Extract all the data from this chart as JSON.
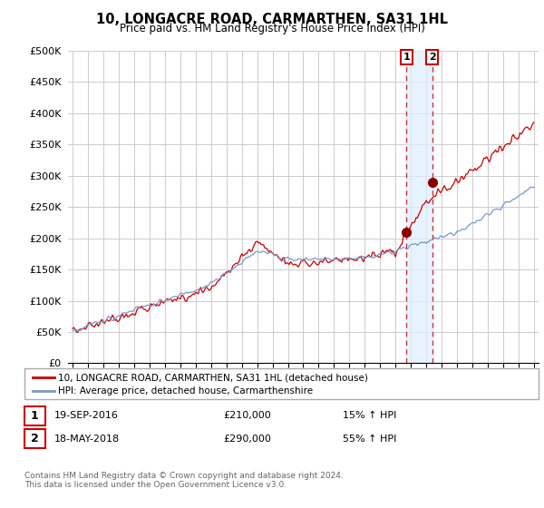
{
  "title": "10, LONGACRE ROAD, CARMARTHEN, SA31 1HL",
  "subtitle": "Price paid vs. HM Land Registry's House Price Index (HPI)",
  "ylabel_ticks": [
    "£0",
    "£50K",
    "£100K",
    "£150K",
    "£200K",
    "£250K",
    "£300K",
    "£350K",
    "£400K",
    "£450K",
    "£500K"
  ],
  "ytick_vals": [
    0,
    50000,
    100000,
    150000,
    200000,
    250000,
    300000,
    350000,
    400000,
    450000,
    500000
  ],
  "ylim": [
    0,
    500000
  ],
  "legend_line1": "10, LONGACRE ROAD, CARMARTHEN, SA31 1HL (detached house)",
  "legend_line2": "HPI: Average price, detached house, Carmarthenshire",
  "transaction1_date": "19-SEP-2016",
  "transaction1_price": "£210,000",
  "transaction1_hpi": "15% ↑ HPI",
  "transaction2_date": "18-MAY-2018",
  "transaction2_price": "£290,000",
  "transaction2_hpi": "55% ↑ HPI",
  "footer": "Contains HM Land Registry data © Crown copyright and database right 2024.\nThis data is licensed under the Open Government Licence v3.0.",
  "line_color_red": "#cc0000",
  "line_color_blue": "#7799cc",
  "marker_color_red": "#880000",
  "vline_color": "#cc3333",
  "shade_color": "#ddeeff",
  "transaction1_x": 2016.72,
  "transaction2_x": 2018.38,
  "transaction1_y": 210000,
  "transaction2_y": 290000,
  "background_color": "#ffffff",
  "grid_color": "#cccccc",
  "xlim_left": 1994.7,
  "xlim_right": 2025.3
}
